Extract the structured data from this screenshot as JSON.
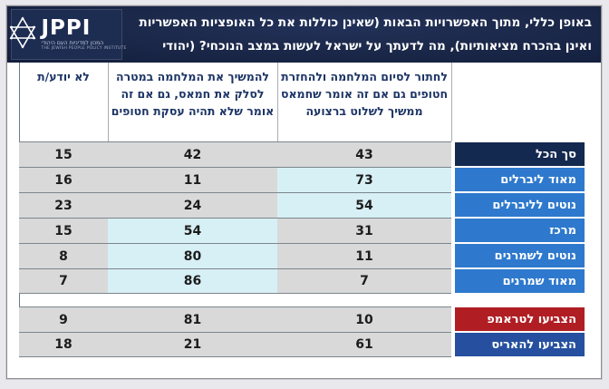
{
  "header": {
    "title_line1": "באופן כללי, מתוך האפשרויות הבאות (שאינן כוללות את כל האופציות האפשריות",
    "title_line2": "ואינן בהכרח מציאותיות), מה לדעתך על ישראל לעשות במצב הנוכחי? (יהודי ארה\"ב, %)",
    "logo": {
      "acronym": "JPPI",
      "name_he": "המכון למדיניות העם היהודי",
      "name_en": "THE JEWISH PEOPLE POLICY INSTITUTE",
      "icon": "star-of-david-icon"
    }
  },
  "colors": {
    "header_bg": "#1a2748",
    "bar_gray": "#d9d9da",
    "highlight_cyan": "#d7f0f6",
    "total_label": "#14294f",
    "ideology_label": "#2e79cd",
    "trump_label": "#b01e24",
    "harris_label": "#26509f"
  },
  "chart_data": {
    "type": "table",
    "title": "באופן כללי, מתוך האפשרויות הבאות (שאינן כוללות את כל האופציות האפשריות ואינן בהכרח מציאותיות), מה לדעתך על ישראל לעשות במצב הנוכחי? (יהודי ארה\"ב, %)",
    "unit": "%",
    "columns": [
      {
        "key": "dont_know",
        "label": "לא יודע/ת"
      },
      {
        "key": "continue_war",
        "label": "להמשיך את המלחמה במטרה לסלק את חמאס, גם אם זה אומר שלא תהיה עסקת חטופים"
      },
      {
        "key": "end_war_return_hostages",
        "label": "לחתור לסיום המלחמה ולהחזרת חטופים גם אם זה אומר שחמאס ממשיך לשלוט ברצועה"
      }
    ],
    "rows": [
      {
        "label": "סך הכל",
        "values": [
          15,
          42,
          43
        ],
        "highlight_col": null,
        "label_color": "#14294f",
        "gap_before": false,
        "group_end": false
      },
      {
        "label": "מאוד ליברלים",
        "values": [
          16,
          11,
          73
        ],
        "highlight_col": 2,
        "label_color": "#2e79cd",
        "gap_before": false,
        "group_end": false
      },
      {
        "label": "נוטים לליברלים",
        "values": [
          23,
          24,
          54
        ],
        "highlight_col": 2,
        "label_color": "#2e79cd",
        "gap_before": false,
        "group_end": false
      },
      {
        "label": "מרכז",
        "values": [
          15,
          54,
          31
        ],
        "highlight_col": 1,
        "label_color": "#2e79cd",
        "gap_before": false,
        "group_end": false
      },
      {
        "label": "נוטים לשמרנים",
        "values": [
          8,
          80,
          11
        ],
        "highlight_col": 1,
        "label_color": "#2e79cd",
        "gap_before": false,
        "group_end": false
      },
      {
        "label": "מאוד שמרנים",
        "values": [
          7,
          86,
          7
        ],
        "highlight_col": 1,
        "label_color": "#2e79cd",
        "gap_before": false,
        "group_end": true
      },
      {
        "label": "הצביעו לטראמפ",
        "values": [
          9,
          81,
          10
        ],
        "highlight_col": null,
        "label_color": "#b01e24",
        "gap_before": true,
        "group_end": false
      },
      {
        "label": "הצביעו להאריס",
        "values": [
          18,
          21,
          61
        ],
        "highlight_col": null,
        "label_color": "#26509f",
        "gap_before": false,
        "group_end": true
      }
    ]
  }
}
